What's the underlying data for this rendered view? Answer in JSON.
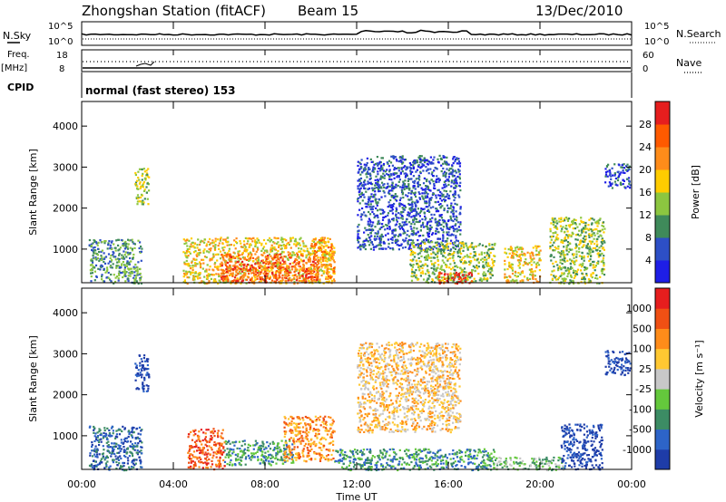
{
  "header": {
    "title": "Zhongshan Station (fitACF)",
    "beam": "Beam 15",
    "date": "13/Dec/2010"
  },
  "params": {
    "nsky_label": "N.Sky",
    "nsearch_label": "N.Search",
    "freq_label": "Freq.",
    "freq_unit": "[MHz]",
    "nave_label": "Nave",
    "cpid_label": "CPID",
    "cpid_text": "normal (fast stereo) 153",
    "noise_ticks": [
      "10^5",
      "10^0"
    ],
    "freq_ticks": [
      "18",
      "8"
    ],
    "nave_ticks": [
      "60",
      "0"
    ]
  },
  "chart_data": [
    {
      "type": "heatmap",
      "quantity": "Power",
      "ylabel": "Slant Range [km]",
      "xlabel": "Time UT",
      "xlim": [
        0,
        24
      ],
      "ylim": [
        180,
        4600
      ],
      "x_ticks": [
        "00:00",
        "04:00",
        "08:00",
        "12:00",
        "16:00",
        "20:00",
        "00:00"
      ],
      "y_ticks": [
        1000,
        2000,
        3000,
        4000
      ],
      "colorbar": {
        "label": "Power [dB]",
        "ticks": [
          "4",
          "8",
          "12",
          "16",
          "20",
          "24",
          "28"
        ],
        "colors": [
          "#1e1ee6",
          "#2d4fc6",
          "#3f8a5a",
          "#8cc640",
          "#ffcc00",
          "#ff8c1a",
          "#ff5a00",
          "#e61e1e"
        ]
      },
      "regions": [
        {
          "t0": 0.3,
          "t1": 2.6,
          "r0": 180,
          "r1": 1250,
          "level": 2
        },
        {
          "t0": 2.3,
          "t1": 2.9,
          "r0": 2100,
          "r1": 3000,
          "level": 3
        },
        {
          "t0": 4.4,
          "t1": 11.0,
          "r0": 180,
          "r1": 1300,
          "level": 4
        },
        {
          "t0": 6.0,
          "t1": 10.3,
          "r0": 200,
          "r1": 900,
          "level": 6
        },
        {
          "t0": 10.0,
          "t1": 11.0,
          "r0": 300,
          "r1": 1300,
          "level": 5
        },
        {
          "t0": 12.0,
          "t1": 16.5,
          "r0": 1000,
          "r1": 3300,
          "level": 1
        },
        {
          "t0": 14.3,
          "t1": 18.0,
          "r0": 200,
          "r1": 1200,
          "level": 3
        },
        {
          "t0": 15.5,
          "t1": 17.0,
          "r0": 180,
          "r1": 450,
          "level": 7
        },
        {
          "t0": 18.4,
          "t1": 20.0,
          "r0": 200,
          "r1": 1100,
          "level": 4
        },
        {
          "t0": 20.4,
          "t1": 22.8,
          "r0": 180,
          "r1": 1800,
          "level": 3
        },
        {
          "t0": 22.8,
          "t1": 23.9,
          "r0": 2500,
          "r1": 3100,
          "level": 1
        }
      ]
    },
    {
      "type": "heatmap",
      "quantity": "Velocity",
      "ylabel": "Slant Range [km]",
      "xlabel": "Time UT",
      "xlim": [
        0,
        24
      ],
      "ylim": [
        180,
        4600
      ],
      "x_ticks": [
        "00:00",
        "04:00",
        "08:00",
        "12:00",
        "16:00",
        "20:00",
        "00:00"
      ],
      "y_ticks": [
        1000,
        2000,
        3000,
        4000
      ],
      "colorbar": {
        "label": "Velocity [m s⁻¹]",
        "ticks": [
          "1000",
          "500",
          "100",
          "25",
          "-25",
          "-100",
          "-500",
          "-1000"
        ],
        "colors": [
          "#1e3ca8",
          "#2d64c8",
          "#3c8c64",
          "#64c83c",
          "#c8c8c8",
          "#ffc832",
          "#ff8c1a",
          "#f05014",
          "#e61e1e"
        ]
      },
      "regions": [
        {
          "t0": 0.3,
          "t1": 2.6,
          "r0": 180,
          "r1": 1250,
          "level": 1
        },
        {
          "t0": 2.3,
          "t1": 2.9,
          "r0": 2100,
          "r1": 3000,
          "level": 0
        },
        {
          "t0": 4.6,
          "t1": 6.2,
          "r0": 200,
          "r1": 1200,
          "level": 7
        },
        {
          "t0": 6.2,
          "t1": 9.2,
          "r0": 300,
          "r1": 900,
          "level": 2
        },
        {
          "t0": 8.8,
          "t1": 11.0,
          "r0": 400,
          "r1": 1500,
          "level": 6
        },
        {
          "t0": 12.0,
          "t1": 16.5,
          "r0": 1100,
          "r1": 3300,
          "level": 5
        },
        {
          "t0": 11.0,
          "t1": 18.0,
          "r0": 180,
          "r1": 700,
          "level": 2
        },
        {
          "t0": 18.0,
          "t1": 21.0,
          "r0": 180,
          "r1": 500,
          "level": 3
        },
        {
          "t0": 20.9,
          "t1": 22.7,
          "r0": 200,
          "r1": 1300,
          "level": 0
        },
        {
          "t0": 22.8,
          "t1": 23.9,
          "r0": 2500,
          "r1": 3100,
          "level": 0
        }
      ]
    }
  ]
}
